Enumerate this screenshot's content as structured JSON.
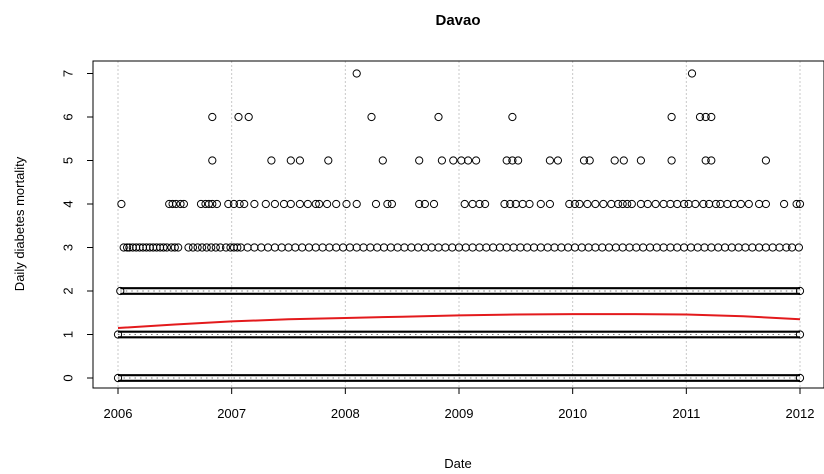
{
  "chart_data": {
    "type": "scatter",
    "title": "Davao",
    "xlabel": "Date",
    "ylabel": "Daily diabetes mortality",
    "xlim": [
      2006,
      2012
    ],
    "ylim": [
      0,
      7
    ],
    "x_ticks": [
      2006,
      2007,
      2008,
      2009,
      2010,
      2011,
      2012
    ],
    "x_tick_labels": [
      "2006",
      "2007",
      "2008",
      "2009",
      "2010",
      "2011",
      "2012"
    ],
    "y_ticks": [
      0,
      1,
      2,
      3,
      4,
      5,
      6,
      7
    ],
    "y_tick_labels": [
      "0",
      "1",
      "2",
      "3",
      "4",
      "5",
      "6",
      "7"
    ],
    "grid": {
      "vertical": true,
      "horizontal": false
    },
    "colors": {
      "points": "#000000",
      "trend": "#e31a1c",
      "grid": "#c8c8c8"
    },
    "dense_levels": [
      {
        "value": 0,
        "x_range": [
          2006.0,
          2012.0
        ]
      },
      {
        "value": 1,
        "x_range": [
          2006.0,
          2012.0
        ]
      },
      {
        "value": 2,
        "x_range": [
          2006.02,
          2012.0
        ]
      }
    ],
    "sparse_points": {
      "3": [
        2006.05,
        2006.08,
        2006.1,
        2006.13,
        2006.16,
        2006.19,
        2006.22,
        2006.25,
        2006.28,
        2006.31,
        2006.34,
        2006.37,
        2006.4,
        2006.43,
        2006.47,
        2006.5,
        2006.53,
        2006.62,
        2006.66,
        2006.7,
        2006.74,
        2006.78,
        2006.82,
        2006.86,
        2006.9,
        2006.95,
        2006.99,
        2007.02,
        2007.05,
        2007.08,
        2007.14,
        2007.2,
        2007.26,
        2007.32,
        2007.38,
        2007.44,
        2007.5,
        2007.56,
        2007.62,
        2007.68,
        2007.74,
        2007.8,
        2007.86,
        2007.92,
        2007.98,
        2008.04,
        2008.1,
        2008.16,
        2008.22,
        2008.28,
        2008.34,
        2008.4,
        2008.46,
        2008.52,
        2008.58,
        2008.64,
        2008.7,
        2008.76,
        2008.82,
        2008.88,
        2008.94,
        2009.0,
        2009.06,
        2009.12,
        2009.18,
        2009.24,
        2009.3,
        2009.36,
        2009.42,
        2009.48,
        2009.54,
        2009.6,
        2009.66,
        2009.72,
        2009.78,
        2009.84,
        2009.9,
        2009.96,
        2010.02,
        2010.08,
        2010.14,
        2010.2,
        2010.26,
        2010.32,
        2010.38,
        2010.44,
        2010.5,
        2010.56,
        2010.62,
        2010.68,
        2010.74,
        2010.8,
        2010.86,
        2010.92,
        2010.98,
        2011.04,
        2011.1,
        2011.16,
        2011.22,
        2011.28,
        2011.34,
        2011.4,
        2011.46,
        2011.52,
        2011.58,
        2011.64,
        2011.7,
        2011.76,
        2011.82,
        2011.88,
        2011.93,
        2011.99
      ],
      "4": [
        2006.03,
        2006.45,
        2006.48,
        2006.51,
        2006.55,
        2006.58,
        2006.73,
        2006.77,
        2006.8,
        2006.83,
        2006.87,
        2006.97,
        2007.02,
        2007.07,
        2007.11,
        2007.2,
        2007.3,
        2007.38,
        2007.46,
        2007.52,
        2007.6,
        2007.67,
        2007.74,
        2007.77,
        2007.84,
        2007.92,
        2008.01,
        2008.1,
        2008.27,
        2008.37,
        2008.41,
        2008.65,
        2008.7,
        2008.78,
        2009.05,
        2009.12,
        2009.18,
        2009.23,
        2009.4,
        2009.45,
        2009.5,
        2009.56,
        2009.62,
        2009.72,
        2009.8,
        2009.97,
        2010.02,
        2010.06,
        2010.13,
        2010.2,
        2010.27,
        2010.34,
        2010.4,
        2010.44,
        2010.48,
        2010.52,
        2010.6,
        2010.66,
        2010.73,
        2010.8,
        2010.86,
        2010.92,
        2010.98,
        2011.02,
        2011.08,
        2011.15,
        2011.2,
        2011.26,
        2011.3,
        2011.36,
        2011.42,
        2011.48,
        2011.55,
        2011.64,
        2011.7,
        2011.86,
        2011.97,
        2012.0
      ],
      "5": [
        2006.83,
        2007.35,
        2007.52,
        2007.6,
        2007.85,
        2008.33,
        2008.65,
        2008.85,
        2008.95,
        2009.02,
        2009.08,
        2009.15,
        2009.42,
        2009.47,
        2009.52,
        2009.8,
        2009.87,
        2010.1,
        2010.15,
        2010.37,
        2010.45,
        2010.6,
        2010.87,
        2011.17,
        2011.22,
        2011.7
      ],
      "6": [
        2006.83,
        2007.06,
        2007.15,
        2008.23,
        2008.82,
        2009.47,
        2010.87,
        2011.12,
        2011.17,
        2011.22
      ],
      "7": [
        2008.1,
        2011.05
      ]
    },
    "trend": {
      "x": [
        2006.0,
        2006.5,
        2007.0,
        2007.5,
        2008.0,
        2008.5,
        2009.0,
        2009.5,
        2010.0,
        2010.5,
        2011.0,
        2011.5,
        2012.0
      ],
      "y": [
        1.15,
        1.23,
        1.3,
        1.35,
        1.38,
        1.41,
        1.44,
        1.46,
        1.47,
        1.47,
        1.46,
        1.42,
        1.35
      ]
    }
  }
}
